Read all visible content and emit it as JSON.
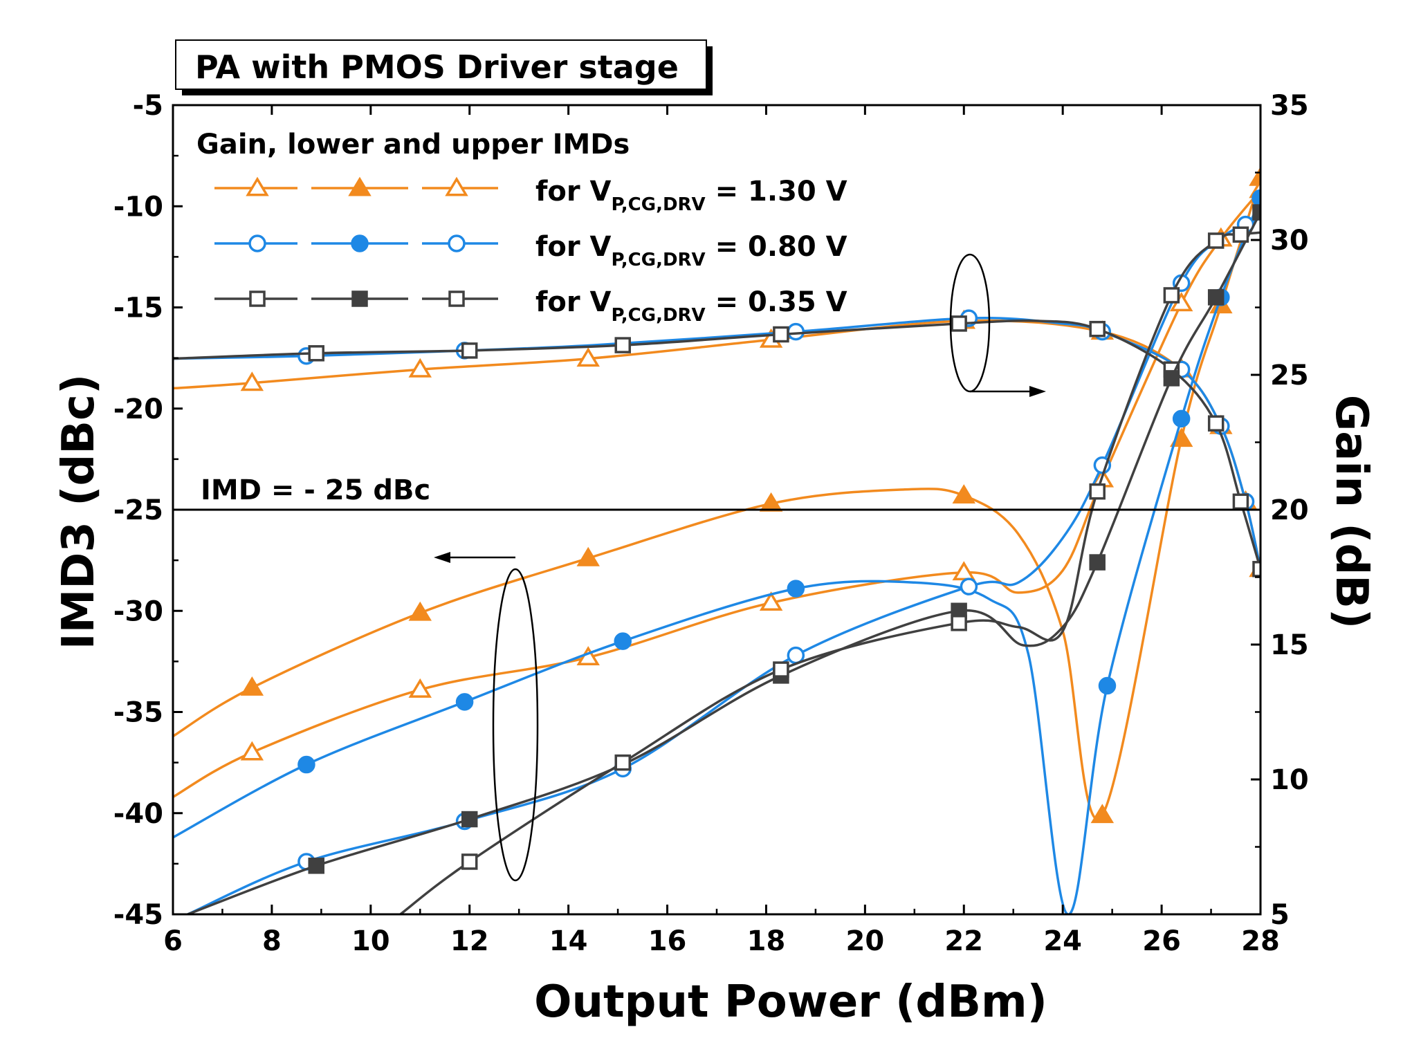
{
  "chart_data": {
    "type": "line",
    "title": "PA with PMOS Driver stage",
    "xlabel": "Output Power (dBm)",
    "ylabel_left": "IMD3 (dBc)",
    "ylabel_right": "Gain (dB)",
    "xlim": [
      6,
      28
    ],
    "ylim_left": [
      -45,
      -5
    ],
    "ylim_right": [
      5,
      35
    ],
    "xticks": [
      6,
      8,
      10,
      12,
      14,
      16,
      18,
      20,
      22,
      24,
      26,
      28
    ],
    "yticks_left": [
      -45,
      -40,
      -35,
      -30,
      -25,
      -20,
      -15,
      -10,
      -5
    ],
    "yticks_right": [
      5,
      10,
      15,
      20,
      25,
      30,
      35
    ],
    "grid": false,
    "legend": {
      "header": "Gain, lower and upper IMDs",
      "entries": [
        {
          "prefix": "for V",
          "sub": "P,CG,DRV",
          "suffix": " = 1.30 V",
          "color": "#F28A1E"
        },
        {
          "prefix": "for V",
          "sub": "P,CG,DRV",
          "suffix": " = 0.80 V",
          "color": "#1E88E5"
        },
        {
          "prefix": "for V",
          "sub": "P,CG,DRV",
          "suffix": " = 0.35 V",
          "color": "#404040"
        }
      ]
    },
    "reference_line": {
      "y": -25,
      "label": "IMD = - 25 dBc"
    },
    "colors": {
      "v130": "#F28A1E",
      "v080": "#1E88E5",
      "v035": "#404040",
      "axis": "#000000"
    },
    "series": [
      {
        "name": "Gain, V = 1.30 V",
        "axis": "right",
        "color": "#F28A1E",
        "marker": "triangle-open",
        "x": [
          6,
          7.6,
          11,
          14.4,
          18.1,
          22,
          24.8,
          26.4,
          27.2,
          27.7,
          28
        ],
        "y": [
          24.5,
          24.7,
          25.2,
          25.6,
          26.3,
          27,
          26.6,
          25.2,
          23.1,
          20.3,
          17.8
        ],
        "markers_x": [
          7.6,
          11,
          14.4,
          18.1,
          22,
          24.8,
          26.4,
          27.2,
          27.7,
          28
        ]
      },
      {
        "name": "Lower IMD3, V = 1.30 V",
        "axis": "left",
        "color": "#F28A1E",
        "marker": "triangle-filled",
        "x": [
          6,
          7.6,
          11,
          14.4,
          18.1,
          20.8,
          22,
          23.1,
          24,
          24.8,
          26.4,
          27.2,
          28
        ],
        "y": [
          -36.2,
          -33.8,
          -30.1,
          -27.4,
          -24.7,
          -24,
          -24.3,
          -26.2,
          -31,
          -40.1,
          -21.5,
          -14.9,
          -8.6
        ],
        "markers_x": [
          7.6,
          11,
          14.4,
          18.1,
          22,
          24.8,
          26.4,
          27.2,
          28
        ]
      },
      {
        "name": "Upper IMD3, V = 1.30 V",
        "axis": "left",
        "color": "#F28A1E",
        "marker": "triangle-open",
        "x": [
          6,
          7.6,
          11,
          14.4,
          18.1,
          22,
          23.1,
          24,
          24.8,
          26.4,
          27.2,
          28
        ],
        "y": [
          -39.2,
          -37,
          -33.9,
          -32.3,
          -29.6,
          -28.1,
          -29.1,
          -28,
          -23.5,
          -14.8,
          -11.6,
          -9.2
        ],
        "markers_x": [
          7.6,
          11,
          14.4,
          18.1,
          22,
          24.8,
          26.4,
          27.2,
          28
        ]
      },
      {
        "name": "Gain, V = 0.80 V",
        "axis": "right",
        "color": "#1E88E5",
        "marker": "circle-open",
        "x": [
          6,
          8.7,
          11.9,
          14.5,
          18.6,
          22.1,
          24,
          24.8,
          26.4,
          27.2,
          27.7,
          28
        ],
        "y": [
          25.6,
          25.7,
          25.9,
          26.1,
          26.6,
          27.1,
          26.9,
          26.6,
          25.2,
          23.1,
          20.3,
          17.8
        ],
        "markers_x": [
          8.7,
          11.9,
          18.6,
          22.1,
          24.8,
          26.4,
          27.2,
          27.7
        ]
      },
      {
        "name": "Lower IMD3, V = 0.80 V",
        "axis": "left",
        "color": "#1E88E5",
        "marker": "circle-filled",
        "x": [
          6,
          8.7,
          11.9,
          15.1,
          18.6,
          21,
          22.5,
          23.3,
          24.1,
          24.9,
          26.4,
          27.2,
          28
        ],
        "y": [
          -41.2,
          -37.6,
          -34.5,
          -31.5,
          -28.9,
          -28.6,
          -29.4,
          -32.1,
          -45,
          -33.7,
          -20.5,
          -14.5,
          -9.6
        ],
        "markers_x": [
          8.7,
          11.9,
          15.1,
          18.6,
          24.9,
          26.4,
          27.2,
          28
        ]
      },
      {
        "name": "Upper IMD3, V = 0.80 V",
        "axis": "left",
        "color": "#1E88E5",
        "marker": "circle-open",
        "x": [
          6.3,
          8.7,
          11.9,
          15.1,
          18.6,
          22.1,
          23.1,
          24,
          24.8,
          26.4,
          27.2,
          27.7,
          28
        ],
        "y": [
          -45,
          -42.4,
          -40.4,
          -37.8,
          -32.2,
          -28.8,
          -28.6,
          -26.4,
          -22.8,
          -13.8,
          -11.6,
          -10.9,
          -10.6
        ],
        "markers_x": [
          8.7,
          11.9,
          15.1,
          18.6,
          22.1,
          24.8,
          26.4,
          27.7
        ]
      },
      {
        "name": "Gain, V = 0.35 V",
        "axis": "right",
        "color": "#404040",
        "marker": "square-open",
        "x": [
          6,
          8.9,
          12,
          15.1,
          18.3,
          21.9,
          23.5,
          24.7,
          26.2,
          27.1,
          27.6,
          28
        ],
        "y": [
          25.6,
          25.8,
          25.9,
          26.1,
          26.5,
          26.9,
          27,
          26.7,
          25.2,
          23.2,
          20.3,
          17.8
        ],
        "markers_x": [
          8.9,
          12,
          15.1,
          18.3,
          21.9,
          24.7,
          26.2,
          27.1,
          27.6,
          28
        ]
      },
      {
        "name": "Lower IMD3, V = 0.35 V",
        "axis": "left",
        "color": "#404040",
        "marker": "square-filled",
        "x": [
          6.3,
          8.9,
          12,
          15.1,
          18.3,
          21.9,
          23.2,
          24,
          24.7,
          26.2,
          27.1,
          28
        ],
        "y": [
          -45,
          -42.6,
          -40.3,
          -37.6,
          -33.2,
          -30,
          -31.7,
          -30.8,
          -27.6,
          -18.5,
          -14.5,
          -10.3
        ],
        "markers_x": [
          8.9,
          12,
          18.3,
          21.9,
          24.7,
          26.2,
          27.1,
          28
        ]
      },
      {
        "name": "Upper IMD3, V = 0.35 V",
        "axis": "left",
        "color": "#404040",
        "marker": "square-open",
        "x": [
          10.6,
          12,
          15.1,
          18.3,
          21.9,
          23.1,
          24,
          24.7,
          26.2,
          27.1,
          27.6,
          28
        ],
        "y": [
          -45,
          -42.4,
          -37.5,
          -32.9,
          -30.6,
          -30.8,
          -31,
          -24.1,
          -14.4,
          -11.7,
          -11.4,
          -11.3
        ],
        "markers_x": [
          12,
          15.1,
          18.3,
          21.9,
          24.7,
          26.2,
          27.1,
          27.6
        ]
      }
    ]
  }
}
